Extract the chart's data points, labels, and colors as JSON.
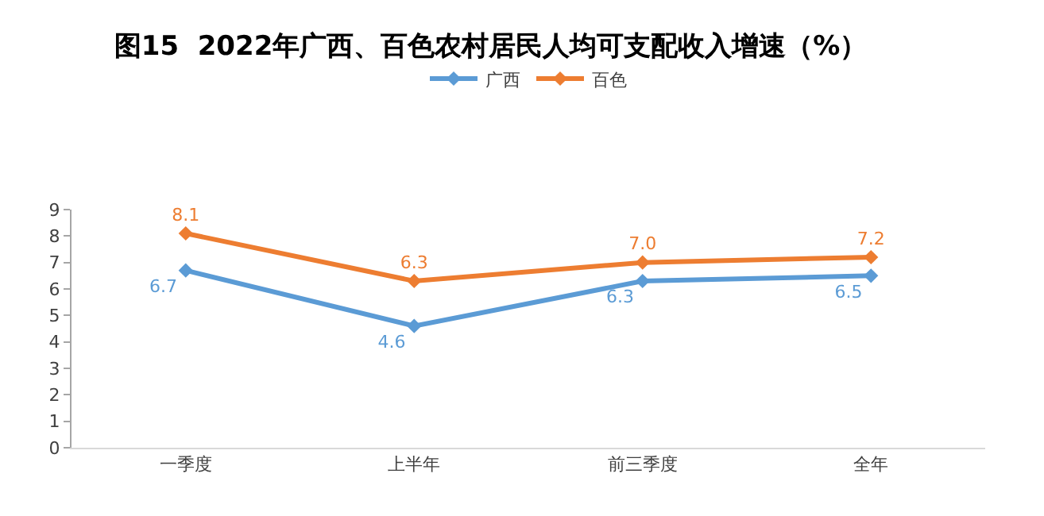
{
  "chart_data": {
    "type": "line",
    "title": "图15  2022年广西、百色农村居民人均可支配收入增速（%）",
    "categories": [
      "一季度",
      "上半年",
      "前三季度",
      "全年"
    ],
    "series": [
      {
        "name": "广西",
        "color": "#5b9bd5",
        "values": [
          6.7,
          4.6,
          6.3,
          6.5
        ],
        "value_labels": [
          "6.7",
          "4.6",
          "6.3",
          "6.5"
        ]
      },
      {
        "name": "百色",
        "color": "#ed7d31",
        "values": [
          8.1,
          6.3,
          7.0,
          7.2
        ],
        "value_labels": [
          "8.1",
          "6.3",
          "7.0",
          "7.2"
        ]
      }
    ],
    "ylim": [
      0,
      9
    ],
    "yticks": [
      0,
      1,
      2,
      3,
      4,
      5,
      6,
      7,
      8,
      9
    ],
    "legend": "top",
    "marker": "diamond",
    "line_style": "solid"
  }
}
